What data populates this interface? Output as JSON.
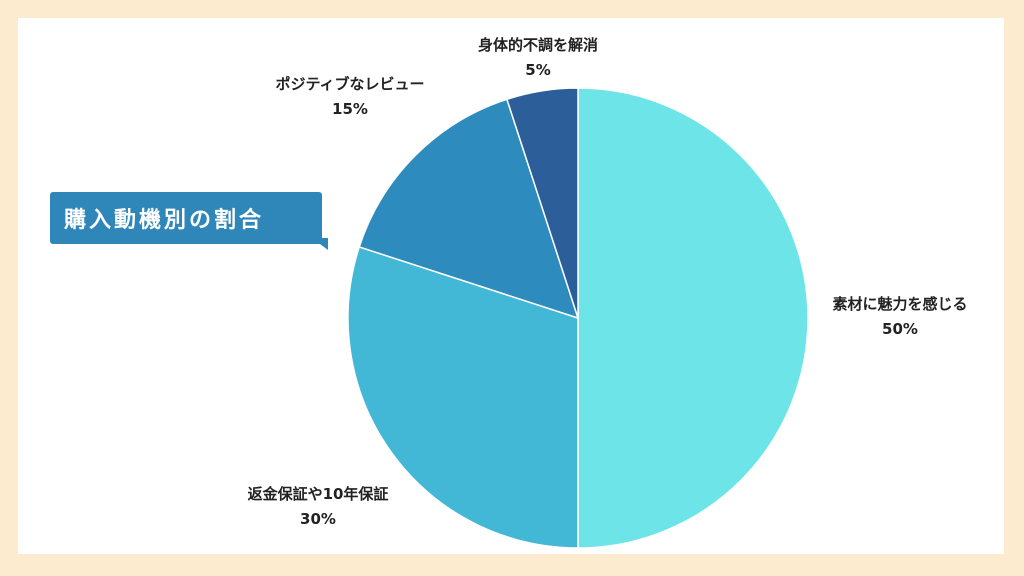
{
  "chart_data": {
    "type": "pie",
    "title": "購入動機別の割合",
    "slices": [
      {
        "label": "素材に魅力を感じる",
        "value": 50,
        "display": "50%",
        "color": "#6ce4e8"
      },
      {
        "label": "返金保証や10年保証",
        "value": 30,
        "display": "30%",
        "color": "#42b8d6"
      },
      {
        "label": "ポジティブなレビュー",
        "value": 15,
        "display": "15%",
        "color": "#2e8bbd"
      },
      {
        "label": "身体的不調を解消",
        "value": 5,
        "display": "5%",
        "color": "#2c5f99"
      }
    ],
    "legend": "none"
  },
  "colors": {
    "background": "#fdebd0",
    "panel": "#ffffff",
    "badge": "#2f86b8"
  }
}
